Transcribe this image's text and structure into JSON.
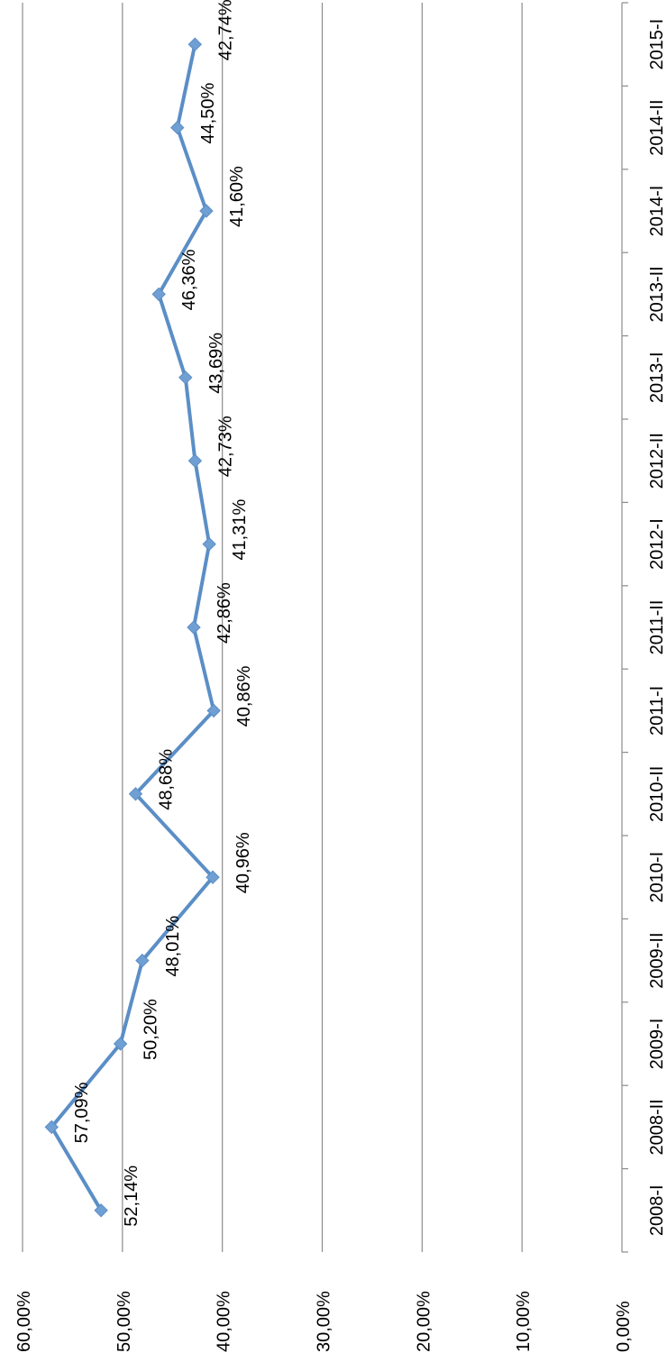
{
  "chart_data": {
    "type": "line",
    "title": "",
    "xlabel": "",
    "ylabel": "",
    "categories": [
      "2008-I",
      "2008-II",
      "2009-I",
      "2009-II",
      "2010-I",
      "2010-II",
      "2011-I",
      "2011-II",
      "2012-I",
      "2012-II",
      "2013-I",
      "2013-II",
      "2014-I",
      "2014-II",
      "2015-I"
    ],
    "series": [
      {
        "values": [
          52.14,
          57.09,
          50.2,
          48.01,
          40.96,
          48.68,
          40.86,
          42.86,
          41.31,
          42.73,
          43.69,
          46.36,
          41.6,
          44.5,
          42.74
        ],
        "labels": [
          "52,14%",
          "57,09%",
          "50,20%",
          "48,01%",
          "40,96%",
          "48,68%",
          "40,86%",
          "42,86%",
          "41,31%",
          "42,73%",
          "43,69%",
          "46,36%",
          "41,60%",
          "44,50%",
          "42,74%"
        ]
      }
    ],
    "ylim": [
      0,
      60
    ],
    "yticks": [
      0,
      10,
      20,
      30,
      40,
      50,
      60
    ],
    "ytick_labels": [
      "0,00%",
      "10,00%",
      "20,00%",
      "30,00%",
      "40,00%",
      "50,00%",
      "60,00%"
    ],
    "grid": true,
    "legend": "none",
    "orientation": "rotated 90° clockwise",
    "colors": {
      "line": "#5b8ec6",
      "marker": "#6f9fd3",
      "grid": "#8c8c8c",
      "axis": "#8c8c8c"
    }
  }
}
